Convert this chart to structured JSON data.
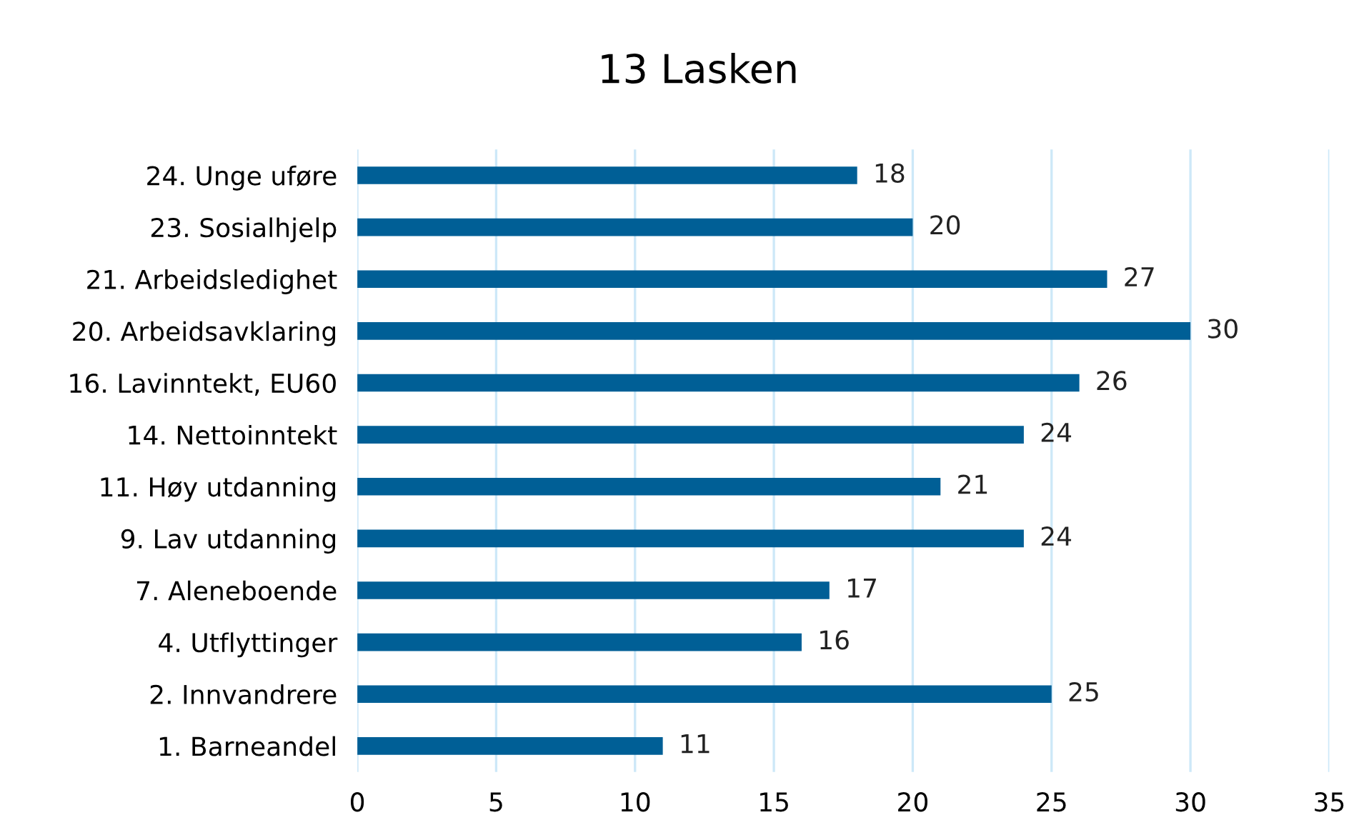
{
  "chart_data": {
    "type": "bar",
    "title": "13 Lasken",
    "orientation": "horizontal",
    "categories": [
      "24. Unge uføre",
      "23. Sosialhjelp",
      "21. Arbeidsledighet",
      "20. Arbeidsavklaring",
      "16. Lavinntekt, EU60",
      "14. Nettoinntekt",
      "11. Høy utdanning",
      "9. Lav utdanning",
      "7. Aleneboende",
      "4. Utflyttinger",
      "2. Innvandrere",
      "1. Barneandel"
    ],
    "values": [
      18,
      20,
      27,
      30,
      26,
      24,
      21,
      24,
      17,
      16,
      25,
      11
    ],
    "color": "#005f96",
    "xlim": [
      0,
      35
    ],
    "xticks": [
      0,
      5,
      10,
      15,
      20,
      25,
      30,
      35
    ],
    "grid": "x",
    "data_labels": true
  }
}
